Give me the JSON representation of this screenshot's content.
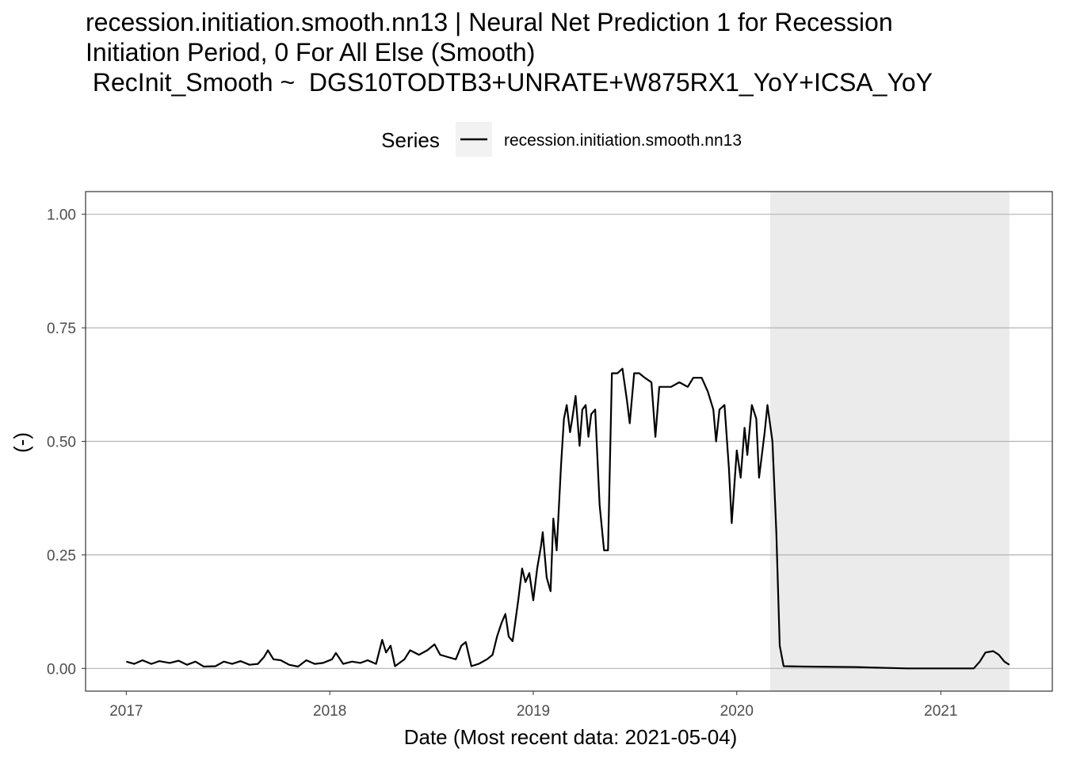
{
  "chart_data": {
    "type": "line",
    "title_lines": [
      "recession.initiation.smooth.nn13 | Neural Net Prediction 1 for Recession",
      "Initiation Period, 0 For All Else (Smooth)",
      " RecInit_Smooth ~  DGS10TODTB3+UNRATE+W875RX1_YoY+ICSA_YoY"
    ],
    "xlabel": "Date (Most recent data: 2021-05-04)",
    "ylabel": "(-)",
    "legend": {
      "title": "Series",
      "position": "top",
      "entries": [
        "recession.initiation.smooth.nn13"
      ]
    },
    "x_ticks": [
      "2017",
      "2018",
      "2019",
      "2020",
      "2021"
    ],
    "y_ticks": [
      "0.00",
      "0.25",
      "0.50",
      "0.75",
      "1.00"
    ],
    "xlim": [
      "2016-10-20",
      "2021-07-20"
    ],
    "ylim": [
      -0.05,
      1.05
    ],
    "grid": true,
    "shaded_regions": [
      {
        "start": "2020-03-01",
        "end": "2021-05-04",
        "color": "#ebebeb"
      }
    ],
    "line_color": "#000000",
    "series": [
      {
        "name": "recession.initiation.smooth.nn13",
        "points": [
          [
            "2017-01-01",
            0.015
          ],
          [
            "2017-01-15",
            0.01
          ],
          [
            "2017-01-30",
            0.018
          ],
          [
            "2017-02-15",
            0.01
          ],
          [
            "2017-03-01",
            0.016
          ],
          [
            "2017-03-20",
            0.012
          ],
          [
            "2017-04-05",
            0.017
          ],
          [
            "2017-04-20",
            0.008
          ],
          [
            "2017-05-05",
            0.015
          ],
          [
            "2017-05-20",
            0.004
          ],
          [
            "2017-06-10",
            0.005
          ],
          [
            "2017-06-25",
            0.015
          ],
          [
            "2017-07-10",
            0.01
          ],
          [
            "2017-07-25",
            0.016
          ],
          [
            "2017-08-10",
            0.008
          ],
          [
            "2017-08-25",
            0.01
          ],
          [
            "2017-09-05",
            0.025
          ],
          [
            "2017-09-12",
            0.04
          ],
          [
            "2017-09-22",
            0.02
          ],
          [
            "2017-10-05",
            0.018
          ],
          [
            "2017-10-20",
            0.008
          ],
          [
            "2017-11-05",
            0.004
          ],
          [
            "2017-11-20",
            0.018
          ],
          [
            "2017-12-05",
            0.01
          ],
          [
            "2017-12-20",
            0.012
          ],
          [
            "2018-01-05",
            0.02
          ],
          [
            "2018-01-12",
            0.034
          ],
          [
            "2018-01-25",
            0.01
          ],
          [
            "2018-02-10",
            0.015
          ],
          [
            "2018-02-25",
            0.012
          ],
          [
            "2018-03-10",
            0.018
          ],
          [
            "2018-03-25",
            0.01
          ],
          [
            "2018-04-05",
            0.063
          ],
          [
            "2018-04-12",
            0.035
          ],
          [
            "2018-04-20",
            0.05
          ],
          [
            "2018-04-28",
            0.005
          ],
          [
            "2018-05-15",
            0.02
          ],
          [
            "2018-05-25",
            0.04
          ],
          [
            "2018-06-10",
            0.03
          ],
          [
            "2018-06-25",
            0.04
          ],
          [
            "2018-07-08",
            0.053
          ],
          [
            "2018-07-18",
            0.03
          ],
          [
            "2018-08-01",
            0.025
          ],
          [
            "2018-08-15",
            0.02
          ],
          [
            "2018-08-25",
            0.05
          ],
          [
            "2018-09-02",
            0.058
          ],
          [
            "2018-09-12",
            0.005
          ],
          [
            "2018-09-25",
            0.01
          ],
          [
            "2018-10-10",
            0.02
          ],
          [
            "2018-10-20",
            0.03
          ],
          [
            "2018-10-28",
            0.07
          ],
          [
            "2018-11-05",
            0.1
          ],
          [
            "2018-11-12",
            0.12
          ],
          [
            "2018-11-18",
            0.07
          ],
          [
            "2018-11-25",
            0.06
          ],
          [
            "2018-12-05",
            0.15
          ],
          [
            "2018-12-12",
            0.22
          ],
          [
            "2018-12-18",
            0.19
          ],
          [
            "2018-12-25",
            0.21
          ],
          [
            "2019-01-01",
            0.15
          ],
          [
            "2019-01-08",
            0.22
          ],
          [
            "2019-01-15",
            0.27
          ],
          [
            "2019-01-18",
            0.3
          ],
          [
            "2019-01-25",
            0.2
          ],
          [
            "2019-02-01",
            0.17
          ],
          [
            "2019-02-06",
            0.33
          ],
          [
            "2019-02-12",
            0.26
          ],
          [
            "2019-02-20",
            0.45
          ],
          [
            "2019-02-25",
            0.55
          ],
          [
            "2019-03-02",
            0.58
          ],
          [
            "2019-03-08",
            0.52
          ],
          [
            "2019-03-12",
            0.55
          ],
          [
            "2019-03-18",
            0.6
          ],
          [
            "2019-03-25",
            0.49
          ],
          [
            "2019-03-30",
            0.57
          ],
          [
            "2019-04-05",
            0.58
          ],
          [
            "2019-04-10",
            0.51
          ],
          [
            "2019-04-15",
            0.56
          ],
          [
            "2019-04-22",
            0.57
          ],
          [
            "2019-04-30",
            0.36
          ],
          [
            "2019-05-08",
            0.26
          ],
          [
            "2019-05-15",
            0.26
          ],
          [
            "2019-05-22",
            0.65
          ],
          [
            "2019-06-01",
            0.65
          ],
          [
            "2019-06-10",
            0.66
          ],
          [
            "2019-06-18",
            0.59
          ],
          [
            "2019-06-23",
            0.54
          ],
          [
            "2019-07-01",
            0.65
          ],
          [
            "2019-07-10",
            0.65
          ],
          [
            "2019-07-20",
            0.64
          ],
          [
            "2019-08-01",
            0.63
          ],
          [
            "2019-08-08",
            0.51
          ],
          [
            "2019-08-15",
            0.62
          ],
          [
            "2019-08-25",
            0.62
          ],
          [
            "2019-09-05",
            0.62
          ],
          [
            "2019-09-20",
            0.63
          ],
          [
            "2019-10-05",
            0.62
          ],
          [
            "2019-10-15",
            0.64
          ],
          [
            "2019-10-30",
            0.64
          ],
          [
            "2019-11-10",
            0.61
          ],
          [
            "2019-11-20",
            0.57
          ],
          [
            "2019-11-25",
            0.5
          ],
          [
            "2019-12-01",
            0.57
          ],
          [
            "2019-12-10",
            0.58
          ],
          [
            "2019-12-18",
            0.44
          ],
          [
            "2019-12-23",
            0.32
          ],
          [
            "2020-01-01",
            0.48
          ],
          [
            "2020-01-08",
            0.42
          ],
          [
            "2020-01-15",
            0.53
          ],
          [
            "2020-01-20",
            0.47
          ],
          [
            "2020-01-28",
            0.58
          ],
          [
            "2020-02-05",
            0.55
          ],
          [
            "2020-02-10",
            0.42
          ],
          [
            "2020-02-20",
            0.52
          ],
          [
            "2020-02-25",
            0.58
          ],
          [
            "2020-03-05",
            0.5
          ],
          [
            "2020-03-12",
            0.3
          ],
          [
            "2020-03-18",
            0.05
          ],
          [
            "2020-03-25",
            0.005
          ],
          [
            "2020-05-01",
            0.004
          ],
          [
            "2020-08-01",
            0.003
          ],
          [
            "2020-11-01",
            0.0
          ],
          [
            "2021-02-01",
            0.0
          ],
          [
            "2021-03-01",
            0.0
          ],
          [
            "2021-03-12",
            0.015
          ],
          [
            "2021-03-22",
            0.035
          ],
          [
            "2021-04-05",
            0.038
          ],
          [
            "2021-04-15",
            0.03
          ],
          [
            "2021-04-25",
            0.015
          ],
          [
            "2021-05-04",
            0.008
          ]
        ]
      }
    ]
  }
}
